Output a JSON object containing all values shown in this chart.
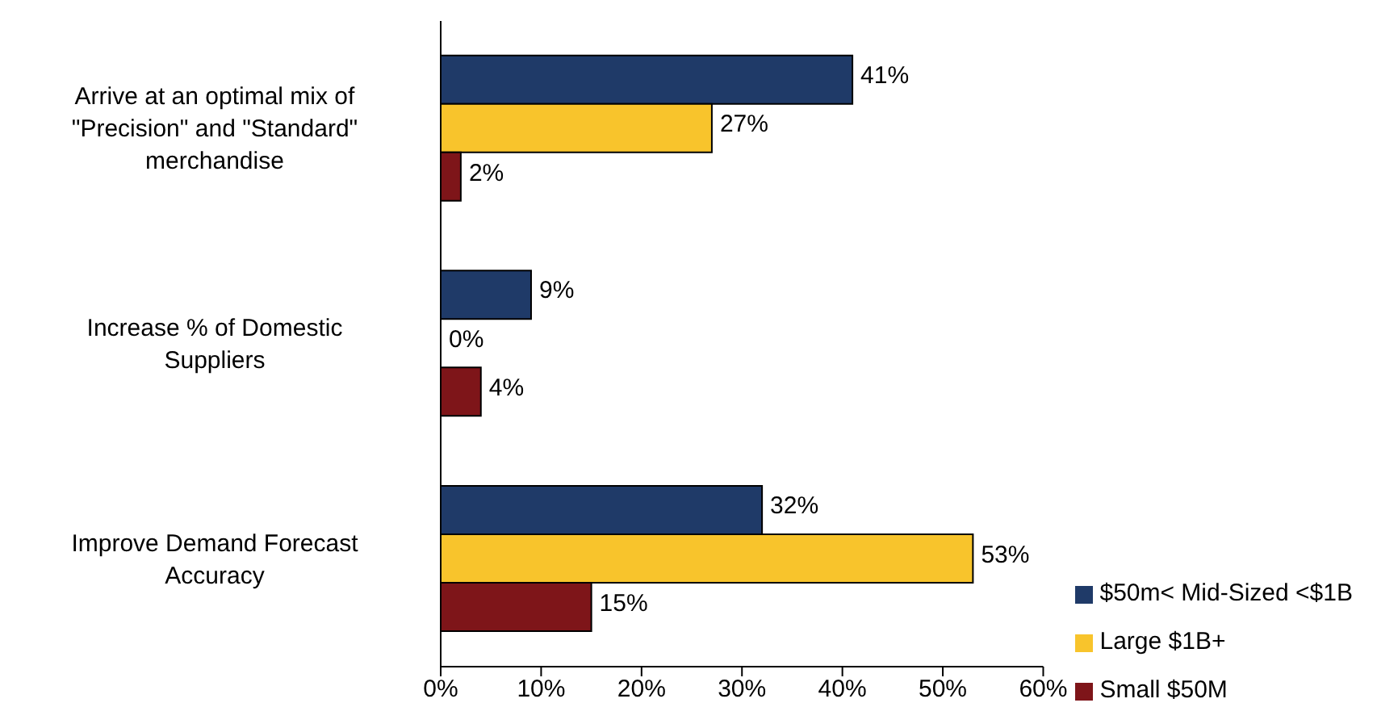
{
  "chart_data": {
    "type": "bar",
    "orientation": "horizontal",
    "categories": [
      "Arrive at an optimal mix of \"Precision\" and \"Standard\" merchandise",
      "Increase % of Domestic Suppliers",
      "Improve Demand Forecast Accuracy"
    ],
    "series": [
      {
        "name": "$50m< Mid-Sized <$1B",
        "color": "#1f3a68",
        "values": [
          41,
          9,
          32
        ],
        "value_labels": [
          "41%",
          "9%",
          "32%"
        ]
      },
      {
        "name": "Large $1B+",
        "color": "#f8c42c",
        "values": [
          27,
          0,
          53
        ],
        "value_labels": [
          "27%",
          "0%",
          "53%"
        ]
      },
      {
        "name": "Small $50M",
        "color": "#7e1519",
        "values": [
          2,
          4,
          15
        ],
        "value_labels": [
          "2%",
          "4%",
          "15%"
        ]
      }
    ],
    "xlim": [
      0,
      60
    ],
    "xticks": [
      {
        "value": 0,
        "label": "0%"
      },
      {
        "value": 10,
        "label": "10%"
      },
      {
        "value": 20,
        "label": "20%"
      },
      {
        "value": 30,
        "label": "30%"
      },
      {
        "value": 40,
        "label": "40%"
      },
      {
        "value": 50,
        "label": "50%"
      },
      {
        "value": 60,
        "label": "60%"
      }
    ],
    "grid": false,
    "legend": "bottom right"
  }
}
